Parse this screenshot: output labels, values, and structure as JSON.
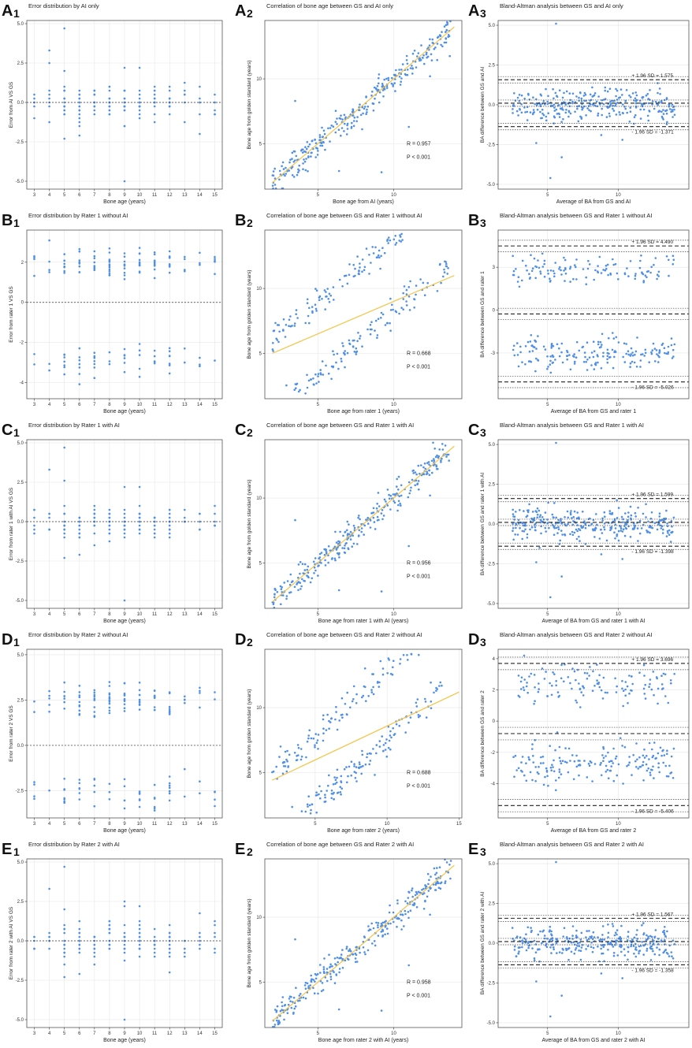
{
  "figure": {
    "point_color": "#4f8fe6",
    "fit_color": "#f5c242",
    "panel_border": "#555555"
  },
  "chart_data": [
    {
      "id": "A1",
      "row_letter": "A",
      "col_digit": "1",
      "type": "scatter",
      "kind": "error",
      "title": "Error distribution by AI only",
      "xlabel": "Bone age (years)",
      "ylabel": "Error from AI VS GS",
      "xlim": [
        2.5,
        15.5
      ],
      "ylim": [
        -5.5,
        5.2
      ],
      "xticks": [
        3,
        4,
        5,
        6,
        7,
        8,
        9,
        10,
        11,
        12,
        13,
        14,
        15
      ],
      "yticks": [
        -5.0,
        -2.5,
        0.0,
        2.5,
        5.0
      ],
      "ytick_labels": [
        "-5.0",
        "-2.5",
        "0.0",
        "2.5",
        "5.0"
      ],
      "spread": 1.0,
      "outliers": [
        [
          5,
          4.7
        ],
        [
          4,
          3.3
        ],
        [
          9,
          -5.0
        ],
        [
          4,
          2.5
        ],
        [
          5,
          2.0
        ],
        [
          9,
          2.2
        ],
        [
          10,
          2.2
        ],
        [
          5,
          -2.3
        ],
        [
          6,
          -2.1
        ]
      ]
    },
    {
      "id": "A2",
      "row_letter": "A",
      "col_digit": "2",
      "type": "scatter",
      "kind": "corr",
      "title": "Correlation of bone age between GS and AI only",
      "xlabel": "Bone age from AI (years)",
      "ylabel": "Bone age from golden standard (years)",
      "xlim": [
        1.5,
        14.5
      ],
      "ylim": [
        1.5,
        14.5
      ],
      "xticks": [
        5,
        10
      ],
      "yticks": [
        5,
        10
      ],
      "xtick_labels": [
        "5",
        "10"
      ],
      "ytick_labels": [
        "5",
        "10"
      ],
      "r_text": "R = 0.957",
      "p_text": "P < 0.001",
      "fit": [
        [
          2,
          2
        ],
        [
          14,
          14
        ]
      ],
      "slope": 1.0,
      "intercept": 0.0,
      "spread": 0.55
    },
    {
      "id": "A3",
      "row_letter": "A",
      "col_digit": "3",
      "type": "scatter",
      "kind": "ba",
      "title": "Bland-Altman analysis between GS and AI only",
      "xlabel": "Average of BA from GS and AI",
      "ylabel": "BA difference between GS and AI",
      "xlim": [
        1.5,
        15
      ],
      "ylim": [
        -5.3,
        5.3
      ],
      "xticks": [
        5,
        10
      ],
      "yticks": [
        -5,
        -2.5,
        0,
        2.5,
        5
      ],
      "xtick_labels": [
        "5",
        "10"
      ],
      "ytick_labels": [
        "-5.0",
        "-2.5",
        "0.0",
        "2.5",
        "5.0"
      ],
      "upper": 1.575,
      "lower": -1.371,
      "mean": 0.1,
      "ci": 0.2,
      "upper_text": "+ 1.96 SD = 1.575",
      "lower_text": "- 1.96 SD = -1.371",
      "bimodal": false,
      "spread": 0.65
    },
    {
      "id": "B1",
      "row_letter": "B",
      "col_digit": "1",
      "type": "scatter",
      "kind": "error",
      "title": "Error distribution by Rater 1 without AI",
      "xlabel": "Bone age (years)",
      "ylabel": "Error from rater 1 VS GS",
      "xlim": [
        2.5,
        15.5
      ],
      "ylim": [
        -4.8,
        3.6
      ],
      "xticks": [
        3,
        4,
        5,
        6,
        7,
        8,
        9,
        10,
        11,
        12,
        13,
        14,
        15
      ],
      "yticks": [
        -4,
        -2,
        0,
        2
      ],
      "ytick_labels": [
        "-4",
        "-2",
        "0",
        "2"
      ],
      "bimodal": true,
      "hi": 2.0,
      "lo": -3.0,
      "spread": 0.7
    },
    {
      "id": "B2",
      "row_letter": "B",
      "col_digit": "2",
      "type": "scatter",
      "kind": "corr2",
      "title": "Correlation of bone age between GS and Rater 1 without AI",
      "xlabel": "Bone age from rater 1 (years)",
      "ylabel": "Bone age from golden standard (years)",
      "xlim": [
        1.5,
        14.5
      ],
      "ylim": [
        1.5,
        14.5
      ],
      "xticks": [
        5,
        10
      ],
      "yticks": [
        5,
        10
      ],
      "xtick_labels": [
        "5",
        "10"
      ],
      "ytick_labels": [
        "5",
        "10"
      ],
      "r_text": "R = 0.668",
      "p_text": "P < 0.001",
      "fit": [
        [
          2,
          5
        ],
        [
          14,
          11
        ]
      ],
      "upper_offset": 4.0,
      "lower_offset": -1.8
    },
    {
      "id": "B3",
      "row_letter": "B",
      "col_digit": "3",
      "type": "scatter",
      "kind": "ba",
      "title": "Bland-Altman analysis between GS and Rater 1 without AI",
      "xlabel": "Average of BA from GS and rater 1",
      "ylabel": "BA difference between GS and rater 1",
      "xlim": [
        1.5,
        15
      ],
      "ylim": [
        -6.2,
        5.6
      ],
      "xticks": [
        5,
        10
      ],
      "yticks": [
        -3,
        0,
        3
      ],
      "xtick_labels": [
        "5",
        "10"
      ],
      "ytick_labels": [
        "-3",
        "0",
        "3"
      ],
      "upper": 4.49,
      "lower": -5.026,
      "mean": -0.27,
      "ci": 0.4,
      "upper_text": "+ 1.96 SD = 4.490",
      "lower_text": "- 1.96 SD = -5.026",
      "bimodal": true,
      "hi": 2.8,
      "lo": -3.0,
      "spread": 0.6
    },
    {
      "id": "C1",
      "row_letter": "C",
      "col_digit": "1",
      "type": "scatter",
      "kind": "error",
      "title": "Error distribution by Rater 1 with AI",
      "xlabel": "Bone age (years)",
      "ylabel": "Error from rater 1 with AI VS GS",
      "xlim": [
        2.5,
        15.5
      ],
      "ylim": [
        -5.5,
        5.2
      ],
      "xticks": [
        3,
        4,
        5,
        6,
        7,
        8,
        9,
        10,
        11,
        12,
        13,
        14,
        15
      ],
      "yticks": [
        -5.0,
        -2.5,
        0.0,
        2.5,
        5.0
      ],
      "ytick_labels": [
        "-5.0",
        "-2.5",
        "0.0",
        "2.5",
        "5.0"
      ],
      "spread": 1.0,
      "outliers": [
        [
          5,
          4.7
        ],
        [
          4,
          3.3
        ],
        [
          9,
          -5.0
        ],
        [
          5,
          2.6
        ],
        [
          9,
          2.2
        ],
        [
          10,
          2.2
        ],
        [
          5,
          -2.3
        ],
        [
          6,
          -2.1
        ]
      ]
    },
    {
      "id": "C2",
      "row_letter": "C",
      "col_digit": "2",
      "type": "scatter",
      "kind": "corr",
      "title": "Correlation of bone age between GS and Rater 1 with AI",
      "xlabel": "Bone age from rater 1 with AI (years)",
      "ylabel": "Bone age from golden standard (years)",
      "xlim": [
        1.5,
        14.5
      ],
      "ylim": [
        1.5,
        14.5
      ],
      "xticks": [
        5,
        10
      ],
      "yticks": [
        5,
        10
      ],
      "xtick_labels": [
        "5",
        "10"
      ],
      "ytick_labels": [
        "5",
        "10"
      ],
      "r_text": "R = 0.956",
      "p_text": "P < 0.001",
      "fit": [
        [
          2,
          2
        ],
        [
          14,
          14
        ]
      ],
      "slope": 1.0,
      "intercept": 0.0,
      "spread": 0.55
    },
    {
      "id": "C3",
      "row_letter": "C",
      "col_digit": "3",
      "type": "scatter",
      "kind": "ba",
      "title": "Bland-Altman analysis between GS and Rater 1 with AI",
      "xlabel": "Average of BA from GS and rater 1 with AI",
      "ylabel": "BA difference between GS and rater 1 with AI",
      "xlim": [
        1.5,
        15
      ],
      "ylim": [
        -5.3,
        5.3
      ],
      "xticks": [
        5,
        10
      ],
      "yticks": [
        -5,
        -2.5,
        0,
        2.5,
        5
      ],
      "xtick_labels": [
        "5",
        "10"
      ],
      "ytick_labels": [
        "-5.0",
        "-2.5",
        "0.0",
        "2.5",
        "5.0"
      ],
      "upper": 1.599,
      "lower": -1.398,
      "mean": 0.1,
      "ci": 0.2,
      "upper_text": "+ 1.96 SD = 1.599",
      "lower_text": "- 1.96 SD = -1.398",
      "bimodal": false,
      "spread": 0.65
    },
    {
      "id": "D1",
      "row_letter": "D",
      "col_digit": "1",
      "type": "scatter",
      "kind": "error",
      "title": "Error distribution by Rater 2 without AI",
      "xlabel": "Bone age (years)",
      "ylabel": "Error from rater 2 VS GS",
      "xlim": [
        2.5,
        15.5
      ],
      "ylim": [
        -4.0,
        5.3
      ],
      "xticks": [
        3,
        4,
        5,
        6,
        7,
        8,
        9,
        10,
        11,
        12,
        13,
        14,
        15
      ],
      "yticks": [
        -2.5,
        0.0,
        2.5,
        5.0
      ],
      "ytick_labels": [
        "-2.5",
        "0.0",
        "2.5",
        "5.0"
      ],
      "bimodal": true,
      "hi": 2.5,
      "lo": -2.6,
      "spread": 0.8
    },
    {
      "id": "D2",
      "row_letter": "D",
      "col_digit": "2",
      "type": "scatter",
      "kind": "corr2",
      "title": "Correlation of bone age between GS and Rater 2 without AI",
      "xlabel": "Bone age from rater 2 (years)",
      "ylabel": "Bone age from golden standard (years)",
      "xlim": [
        1.5,
        15.2
      ],
      "ylim": [
        1.5,
        14.5
      ],
      "xticks": [
        5,
        10,
        15
      ],
      "yticks": [
        5,
        10
      ],
      "xtick_labels": [
        "5",
        "10",
        "15"
      ],
      "ytick_labels": [
        "5",
        "10"
      ],
      "r_text": "R = 0.688",
      "p_text": "P < 0.001",
      "fit": [
        [
          2,
          4.4
        ],
        [
          15,
          11.2
        ]
      ],
      "upper_offset": 2.8,
      "lower_offset": -2.4
    },
    {
      "id": "D3",
      "row_letter": "D",
      "col_digit": "3",
      "type": "scatter",
      "kind": "ba",
      "title": "Bland-Altman analysis between GS and Rater 2 without AI",
      "xlabel": "Average of BA from GS and rater 2",
      "ylabel": "BA difference between GS and rater 2",
      "xlim": [
        1.5,
        15
      ],
      "ylim": [
        -6.2,
        4.6
      ],
      "xticks": [
        5,
        10
      ],
      "yticks": [
        -4,
        -2,
        0,
        2,
        4
      ],
      "xtick_labels": [
        "5",
        "10"
      ],
      "ytick_labels": [
        "-4",
        "-2",
        "0",
        "2",
        "4"
      ],
      "upper": 3.696,
      "lower": -5.406,
      "mean": -0.8,
      "ci": 0.4,
      "upper_text": "+ 1.96 SD = 3.696",
      "lower_text": "- 1.96 SD = -5.406",
      "bimodal": true,
      "hi": 2.4,
      "lo": -2.8,
      "spread": 0.7
    },
    {
      "id": "E1",
      "row_letter": "E",
      "col_digit": "1",
      "type": "scatter",
      "kind": "error",
      "title": "Error distribution by Rater 2 with AI",
      "xlabel": "Bone age (years)",
      "ylabel": "Error from rater 2 with AI VS GS",
      "xlim": [
        2.5,
        15.5
      ],
      "ylim": [
        -5.5,
        5.2
      ],
      "xticks": [
        3,
        4,
        5,
        6,
        7,
        8,
        9,
        10,
        11,
        12,
        13,
        14,
        15
      ],
      "yticks": [
        -5.0,
        -2.5,
        0.0,
        2.5,
        5.0
      ],
      "ytick_labels": [
        "-5.0",
        "-2.5",
        "0.0",
        "2.5",
        "5.0"
      ],
      "spread": 1.0,
      "outliers": [
        [
          5,
          4.7
        ],
        [
          4,
          3.3
        ],
        [
          9,
          -5.0
        ],
        [
          5,
          2.0
        ],
        [
          9,
          2.2
        ],
        [
          10,
          2.2
        ],
        [
          5,
          -2.3
        ],
        [
          6,
          -2.1
        ]
      ]
    },
    {
      "id": "E2",
      "row_letter": "E",
      "col_digit": "2",
      "type": "scatter",
      "kind": "corr",
      "title": "Correlation of bone age between GS and Rater 2 with AI",
      "xlabel": "Bone age from rater 2 with AI (years)",
      "ylabel": "Bone age from golden standard (years)",
      "xlim": [
        1.5,
        14.5
      ],
      "ylim": [
        1.5,
        14.5
      ],
      "xticks": [
        5,
        10
      ],
      "yticks": [
        5,
        10
      ],
      "xtick_labels": [
        "5",
        "10"
      ],
      "ytick_labels": [
        "5",
        "10"
      ],
      "r_text": "R = 0.958",
      "p_text": "P < 0.001",
      "fit": [
        [
          2,
          2
        ],
        [
          14,
          14
        ]
      ],
      "slope": 1.0,
      "intercept": 0.0,
      "spread": 0.55
    },
    {
      "id": "E3",
      "row_letter": "E",
      "col_digit": "3",
      "type": "scatter",
      "kind": "ba",
      "title": "Bland-Altman analysis between GS and Rater 2 with AI",
      "xlabel": "Average of BA from GS and rater 2 with AI",
      "ylabel": "BA difference between GS and rater 2 with AI",
      "xlim": [
        1.5,
        15
      ],
      "ylim": [
        -5.3,
        5.3
      ],
      "xticks": [
        5,
        10
      ],
      "yticks": [
        -5,
        -2.5,
        0,
        2.5,
        5
      ],
      "xtick_labels": [
        "5",
        "10"
      ],
      "ytick_labels": [
        "-5.0",
        "-2.5",
        "0.0",
        "2.5",
        "5.0"
      ],
      "upper": 1.567,
      "lower": -1.358,
      "mean": 0.1,
      "ci": 0.2,
      "upper_text": "+ 1.96 SD = 1.567",
      "lower_text": "- 1.96 SD = -1.358",
      "bimodal": false,
      "spread": 0.65
    }
  ]
}
